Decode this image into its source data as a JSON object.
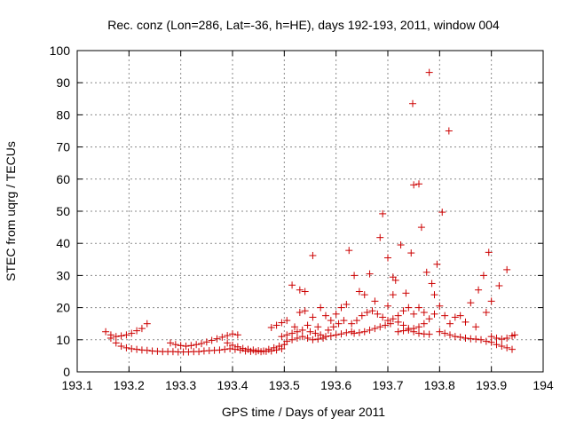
{
  "chart_data": {
    "type": "scatter",
    "title": "Rec. conz (Lon=286, Lat=-36, h=HE), days 192-193, 2011, window 004",
    "xlabel": "GPS time / Days of year 2011",
    "ylabel": "STEC from uqrg / TECUs",
    "xlim": [
      193.1,
      194.0
    ],
    "ylim": [
      0,
      100
    ],
    "grid": true,
    "xticks": [
      "193.1",
      "193.2",
      "193.3",
      "193.4",
      "193.5",
      "193.6",
      "193.7",
      "193.8",
      "193.9",
      "194"
    ],
    "yticks": [
      "0",
      "10",
      "20",
      "30",
      "40",
      "50",
      "60",
      "70",
      "80",
      "90",
      "100"
    ],
    "marker": "+",
    "color": "#cc0000",
    "series": [
      {
        "name": "STEC",
        "points": [
          [
            193.155,
            12.5
          ],
          [
            193.165,
            11.5
          ],
          [
            193.175,
            11.0
          ],
          [
            193.185,
            11.2
          ],
          [
            193.195,
            11.5
          ],
          [
            193.205,
            12.0
          ],
          [
            193.215,
            12.8
          ],
          [
            193.225,
            13.5
          ],
          [
            193.235,
            15.0
          ],
          [
            193.165,
            10.5
          ],
          [
            193.175,
            9.0
          ],
          [
            193.185,
            8.0
          ],
          [
            193.195,
            7.5
          ],
          [
            193.205,
            7.2
          ],
          [
            193.215,
            7.0
          ],
          [
            193.225,
            6.8
          ],
          [
            193.235,
            6.7
          ],
          [
            193.245,
            6.5
          ],
          [
            193.255,
            6.4
          ],
          [
            193.265,
            6.3
          ],
          [
            193.275,
            6.3
          ],
          [
            193.285,
            6.3
          ],
          [
            193.295,
            6.2
          ],
          [
            193.305,
            6.2
          ],
          [
            193.315,
            6.2
          ],
          [
            193.325,
            6.3
          ],
          [
            193.335,
            6.3
          ],
          [
            193.345,
            6.5
          ],
          [
            193.355,
            6.6
          ],
          [
            193.365,
            6.7
          ],
          [
            193.375,
            6.8
          ],
          [
            193.385,
            7.0
          ],
          [
            193.395,
            7.2
          ],
          [
            193.405,
            7.0
          ],
          [
            193.415,
            6.8
          ],
          [
            193.425,
            6.5
          ],
          [
            193.435,
            6.4
          ],
          [
            193.445,
            6.3
          ],
          [
            193.455,
            6.3
          ],
          [
            193.465,
            6.4
          ],
          [
            193.475,
            6.5
          ],
          [
            193.485,
            6.8
          ],
          [
            193.495,
            7.2
          ],
          [
            193.28,
            9.0
          ],
          [
            193.29,
            8.5
          ],
          [
            193.3,
            8.2
          ],
          [
            193.31,
            8.0
          ],
          [
            193.32,
            8.2
          ],
          [
            193.33,
            8.5
          ],
          [
            193.34,
            8.8
          ],
          [
            193.35,
            9.3
          ],
          [
            193.36,
            9.8
          ],
          [
            193.37,
            10.3
          ],
          [
            193.38,
            10.8
          ],
          [
            193.39,
            11.3
          ],
          [
            193.4,
            11.8
          ],
          [
            193.41,
            11.5
          ],
          [
            193.39,
            9.0
          ],
          [
            193.4,
            8.3
          ],
          [
            193.41,
            7.8
          ],
          [
            193.42,
            7.3
          ],
          [
            193.43,
            7.0
          ],
          [
            193.44,
            6.8
          ],
          [
            193.45,
            6.6
          ],
          [
            193.46,
            6.5
          ],
          [
            193.47,
            7.0
          ],
          [
            193.48,
            7.5
          ],
          [
            193.49,
            8.0
          ],
          [
            193.5,
            8.5
          ],
          [
            193.475,
            13.8
          ],
          [
            193.485,
            14.5
          ],
          [
            193.495,
            15.3
          ],
          [
            193.505,
            16.0
          ],
          [
            193.495,
            11.0
          ],
          [
            193.505,
            11.5
          ],
          [
            193.515,
            12.0
          ],
          [
            193.525,
            12.5
          ],
          [
            193.535,
            13.0
          ],
          [
            193.505,
            9.5
          ],
          [
            193.515,
            10.0
          ],
          [
            193.525,
            10.5
          ],
          [
            193.535,
            11.0
          ],
          [
            193.515,
            27.0
          ],
          [
            193.53,
            25.5
          ],
          [
            193.54,
            25.0
          ],
          [
            193.555,
            36.2
          ],
          [
            193.52,
            14.0
          ],
          [
            193.53,
            18.5
          ],
          [
            193.54,
            19.0
          ],
          [
            193.545,
            14.5
          ],
          [
            193.555,
            17.0
          ],
          [
            193.565,
            14.0
          ],
          [
            193.57,
            20.0
          ],
          [
            193.58,
            17.5
          ],
          [
            193.55,
            12.5
          ],
          [
            193.56,
            12.0
          ],
          [
            193.57,
            11.5
          ],
          [
            193.58,
            11.0
          ],
          [
            193.59,
            11.2
          ],
          [
            193.6,
            11.5
          ],
          [
            193.61,
            11.8
          ],
          [
            193.62,
            12.2
          ],
          [
            193.63,
            12.5
          ],
          [
            193.545,
            10.5
          ],
          [
            193.555,
            10.0
          ],
          [
            193.565,
            10.2
          ],
          [
            193.575,
            10.5
          ],
          [
            193.585,
            13.0
          ],
          [
            193.595,
            14.0
          ],
          [
            193.605,
            15.0
          ],
          [
            193.615,
            16.0
          ],
          [
            193.59,
            16.0
          ],
          [
            193.6,
            18.0
          ],
          [
            193.61,
            20.0
          ],
          [
            193.62,
            21.0
          ],
          [
            193.625,
            37.8
          ],
          [
            193.635,
            30.0
          ],
          [
            193.645,
            25.0
          ],
          [
            193.655,
            24.0
          ],
          [
            193.665,
            30.5
          ],
          [
            193.675,
            22.0
          ],
          [
            193.685,
            41.8
          ],
          [
            193.69,
            49.2
          ],
          [
            193.63,
            15.0
          ],
          [
            193.64,
            16.0
          ],
          [
            193.65,
            17.5
          ],
          [
            193.66,
            18.5
          ],
          [
            193.67,
            19.0
          ],
          [
            193.68,
            18.0
          ],
          [
            193.69,
            17.0
          ],
          [
            193.7,
            16.0
          ],
          [
            193.635,
            12.0
          ],
          [
            193.645,
            12.2
          ],
          [
            193.655,
            12.5
          ],
          [
            193.665,
            13.0
          ],
          [
            193.675,
            13.5
          ],
          [
            193.685,
            14.0
          ],
          [
            193.695,
            14.5
          ],
          [
            193.705,
            15.0
          ],
          [
            193.7,
            35.5
          ],
          [
            193.71,
            29.5
          ],
          [
            193.715,
            28.5
          ],
          [
            193.725,
            39.5
          ],
          [
            193.735,
            24.5
          ],
          [
            193.745,
            37.0
          ],
          [
            193.75,
            58.2
          ],
          [
            193.748,
            83.5
          ],
          [
            193.76,
            58.5
          ],
          [
            193.765,
            45.0
          ],
          [
            193.775,
            31.0
          ],
          [
            193.78,
            93.2
          ],
          [
            193.785,
            27.5
          ],
          [
            193.795,
            33.5
          ],
          [
            193.805,
            49.7
          ],
          [
            193.818,
            75.0
          ],
          [
            193.7,
            20.5
          ],
          [
            193.71,
            24.0
          ],
          [
            193.72,
            17.5
          ],
          [
            193.73,
            19.0
          ],
          [
            193.74,
            20.0
          ],
          [
            193.75,
            18.0
          ],
          [
            193.76,
            20.0
          ],
          [
            193.77,
            18.5
          ],
          [
            193.71,
            16.5
          ],
          [
            193.72,
            15.5
          ],
          [
            193.73,
            14.5
          ],
          [
            193.74,
            13.5
          ],
          [
            193.75,
            12.5
          ],
          [
            193.76,
            12.0
          ],
          [
            193.77,
            11.8
          ],
          [
            193.78,
            11.7
          ],
          [
            193.72,
            12.5
          ],
          [
            193.73,
            12.8
          ],
          [
            193.74,
            13.0
          ],
          [
            193.75,
            13.5
          ],
          [
            193.76,
            14.0
          ],
          [
            193.77,
            15.0
          ],
          [
            193.78,
            16.5
          ],
          [
            193.79,
            18.0
          ],
          [
            193.79,
            24.0
          ],
          [
            193.8,
            20.5
          ],
          [
            193.81,
            17.5
          ],
          [
            193.82,
            15.0
          ],
          [
            193.8,
            12.5
          ],
          [
            193.81,
            12.0
          ],
          [
            193.82,
            11.5
          ],
          [
            193.83,
            11.0
          ],
          [
            193.84,
            10.8
          ],
          [
            193.85,
            10.5
          ],
          [
            193.86,
            10.3
          ],
          [
            193.87,
            10.2
          ],
          [
            193.83,
            17.0
          ],
          [
            193.84,
            17.5
          ],
          [
            193.85,
            15.5
          ],
          [
            193.86,
            21.5
          ],
          [
            193.87,
            14.0
          ],
          [
            193.875,
            25.5
          ],
          [
            193.885,
            30.0
          ],
          [
            193.895,
            37.2
          ],
          [
            193.88,
            10.0
          ],
          [
            193.89,
            9.5
          ],
          [
            193.9,
            9.2
          ],
          [
            193.91,
            8.5
          ],
          [
            193.92,
            8.0
          ],
          [
            193.93,
            7.5
          ],
          [
            193.94,
            7.0
          ],
          [
            193.89,
            18.5
          ],
          [
            193.9,
            22.0
          ],
          [
            193.915,
            26.8
          ],
          [
            193.93,
            31.8
          ],
          [
            193.9,
            11.0
          ],
          [
            193.91,
            10.5
          ],
          [
            193.92,
            10.2
          ],
          [
            193.93,
            10.5
          ],
          [
            193.94,
            11.2
          ],
          [
            193.945,
            11.5
          ]
        ]
      }
    ]
  }
}
